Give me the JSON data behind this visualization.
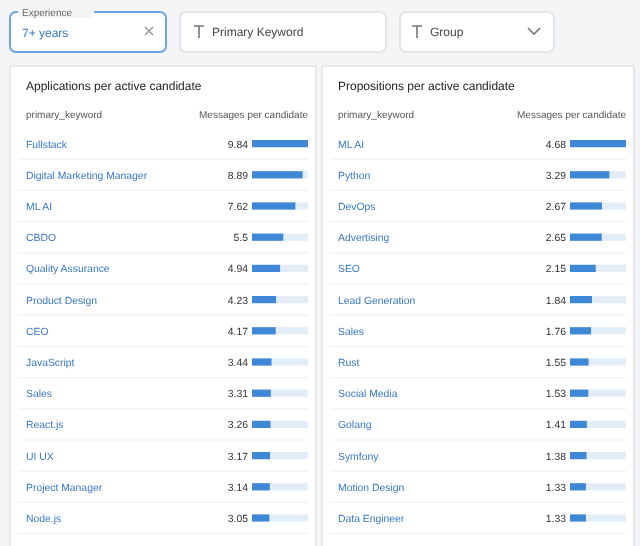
{
  "chart_data": [
    {
      "type": "other",
      "annotations": [
        "Experience",
        "7+ years",
        "Primary Keyword",
        "Group"
      ]
    },
    {
      "type": "bar",
      "orientation": "horizontal",
      "title": "Applications per active candidate",
      "ylabel": "primary_keyword",
      "xlabel": "Messages per candidate",
      "data_labels": true,
      "categories": [
        "Fullstack",
        "Digital Marketing Manager",
        "ML AI",
        "CBDO",
        "Quality Assurance",
        "Product Design",
        "CEO",
        "JavaScript",
        "Sales",
        "React.js",
        "UI UX",
        "Project Manager",
        "Node.js"
      ],
      "color": "#3f88d8",
      "values": [
        9.84,
        8.89,
        7.62,
        5.5,
        4.94,
        4.23,
        4.17,
        3.44,
        3.31,
        3.26,
        3.17,
        3.14,
        3.05
      ]
    },
    {
      "type": "bar",
      "orientation": "horizontal",
      "title": "Propositions per active candidate",
      "ylabel": "primary_keyword",
      "xlabel": "Messages per candidate",
      "data_labels": true,
      "categories": [
        "ML AI",
        "Python",
        "DevOps",
        "Advertising",
        "SEO",
        "Lead Generation",
        "Sales",
        "Rust",
        "Social Media",
        "Golang",
        "Symfony",
        "Motion Design",
        "Data Engineer"
      ],
      "color": "#3f88d8",
      "values": [
        4.68,
        3.29,
        2.67,
        2.65,
        2.15,
        1.84,
        1.76,
        1.55,
        1.53,
        1.41,
        1.38,
        1.33,
        1.33
      ]
    }
  ]
}
